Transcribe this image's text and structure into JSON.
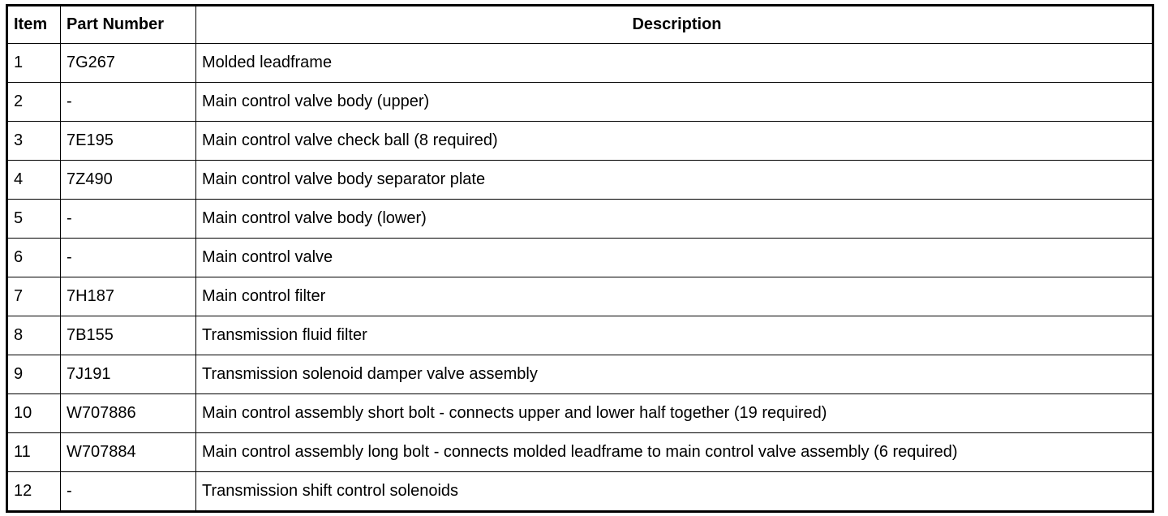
{
  "headers": {
    "item": "Item",
    "part_number": "Part Number",
    "description": "Description"
  },
  "rows": [
    {
      "item": "1",
      "part_number": "7G267",
      "description": "Molded leadframe"
    },
    {
      "item": "2",
      "part_number": "-",
      "description": "Main control valve body (upper)"
    },
    {
      "item": "3",
      "part_number": "7E195",
      "description": "Main control valve check ball (8 required)"
    },
    {
      "item": "4",
      "part_number": "7Z490",
      "description": "Main control valve body separator plate"
    },
    {
      "item": "5",
      "part_number": "-",
      "description": "Main control valve body (lower)"
    },
    {
      "item": "6",
      "part_number": "-",
      "description": "Main control valve"
    },
    {
      "item": "7",
      "part_number": "7H187",
      "description": "Main control filter"
    },
    {
      "item": "8",
      "part_number": "7B155",
      "description": "Transmission fluid filter"
    },
    {
      "item": "9",
      "part_number": "7J191",
      "description": "Transmission solenoid damper valve assembly"
    },
    {
      "item": "10",
      "part_number": "W707886",
      "description": "Main control assembly short bolt - connects upper and lower half together (19 required)"
    },
    {
      "item": "11",
      "part_number": "W707884",
      "description": "Main control assembly long bolt - connects molded leadframe to main control valve assembly (6 required)"
    },
    {
      "item": "12",
      "part_number": "-",
      "description": "Transmission shift control solenoids"
    }
  ]
}
